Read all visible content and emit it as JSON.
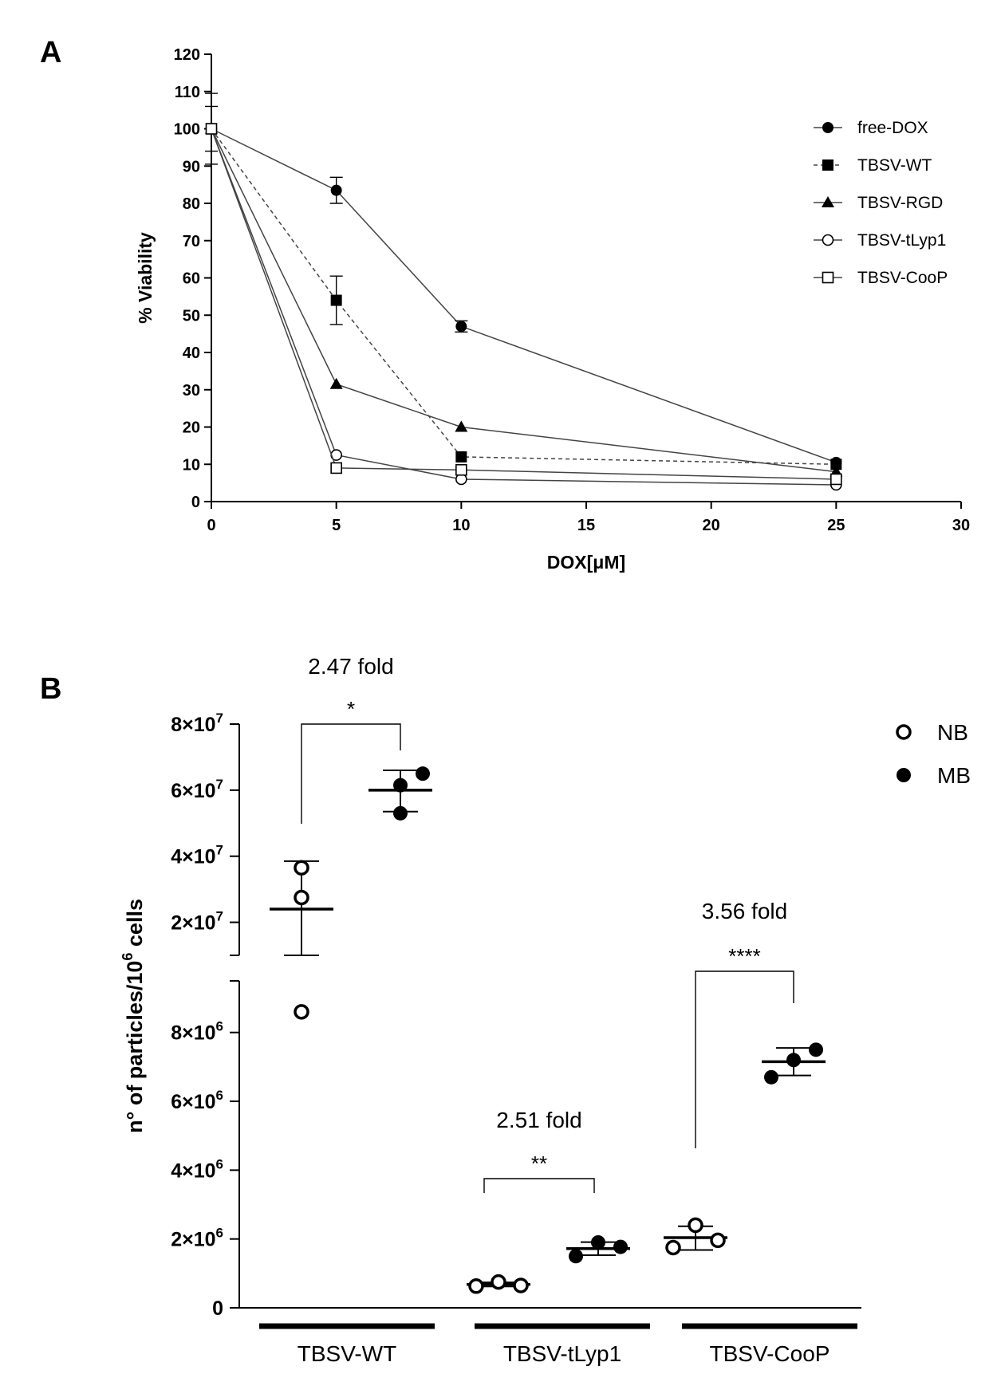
{
  "chart_data": [
    {
      "panel": "A",
      "type": "line",
      "xlabel": "DOX[μM]",
      "ylabel": "% Viability",
      "xlim": [
        0,
        30
      ],
      "ylim": [
        0,
        120
      ],
      "xticks": [
        0,
        5,
        10,
        15,
        20,
        25,
        30
      ],
      "yticks": [
        0,
        10,
        20,
        30,
        40,
        50,
        60,
        70,
        80,
        90,
        100,
        110,
        120
      ],
      "x": [
        0,
        5,
        10,
        25
      ],
      "series": [
        {
          "name": "free-DOX",
          "marker": "circle-filled",
          "dash": "solid",
          "values": [
            100,
            83.5,
            47,
            10.5
          ],
          "errors": [
            9.5,
            3.5,
            1.5,
            0
          ]
        },
        {
          "name": "TBSV-WT",
          "marker": "square-filled",
          "dash": "dashed",
          "values": [
            100,
            54,
            12,
            10
          ],
          "errors": [
            6,
            6.5,
            0,
            0
          ]
        },
        {
          "name": "TBSV-RGD",
          "marker": "triangle-filled",
          "dash": "solid",
          "values": [
            100,
            31.5,
            20,
            8
          ],
          "errors": [
            0,
            0,
            0,
            0
          ]
        },
        {
          "name": "TBSV-tLyp1",
          "marker": "circle-open",
          "dash": "solid",
          "values": [
            100,
            12.5,
            6,
            4.5
          ],
          "errors": [
            0,
            0,
            0,
            0
          ]
        },
        {
          "name": "TBSV-CooP",
          "marker": "square-open",
          "dash": "solid",
          "values": [
            100,
            9,
            8.5,
            6
          ],
          "errors": [
            0,
            0,
            0,
            0
          ]
        }
      ]
    },
    {
      "panel": "B",
      "type": "scatter",
      "ylabel_main": "n° of particles/10",
      "ylabel_sup": "6",
      "ylabel_tail": " cells",
      "categories": [
        "TBSV-WT",
        "TBSV-tLyp1",
        "TBSV-CooP"
      ],
      "legend": [
        {
          "name": "NB",
          "style": "open"
        },
        {
          "name": "MB",
          "style": "filled"
        }
      ],
      "upper_axis": {
        "range": [
          10000000,
          80000000
        ],
        "ticks": [
          {
            "value": 20000000,
            "mant": "2×10",
            "exp": "7"
          },
          {
            "value": 40000000,
            "mant": "4×10",
            "exp": "7"
          },
          {
            "value": 60000000,
            "mant": "6×10",
            "exp": "7"
          },
          {
            "value": 80000000,
            "mant": "8×10",
            "exp": "7"
          }
        ]
      },
      "lower_axis": {
        "range": [
          0,
          9500000
        ],
        "ticks": [
          {
            "value": 0,
            "mant": "0",
            "exp": ""
          },
          {
            "value": 2000000,
            "mant": "2×10",
            "exp": "6"
          },
          {
            "value": 4000000,
            "mant": "4×10",
            "exp": "6"
          },
          {
            "value": 6000000,
            "mant": "6×10",
            "exp": "6"
          },
          {
            "value": 8000000,
            "mant": "8×10",
            "exp": "6"
          }
        ]
      },
      "groups": [
        {
          "category": "TBSV-WT",
          "type": "NB",
          "points": [
            36500000,
            27500000,
            8600000
          ],
          "mean": 24000000,
          "sd_low": 10000000,
          "sd_high": 38500000
        },
        {
          "category": "TBSV-WT",
          "type": "MB",
          "points": [
            61500000,
            53000000,
            65000000
          ],
          "mean": 60000000,
          "sd_low": 53500000,
          "sd_high": 66000000
        },
        {
          "category": "TBSV-tLyp1",
          "type": "NB",
          "points": [
            630000,
            750000,
            650000
          ],
          "mean": 680000,
          "sd_low": 620000,
          "sd_high": 740000
        },
        {
          "category": "TBSV-tLyp1",
          "type": "MB",
          "points": [
            1500000,
            1900000,
            1770000
          ],
          "mean": 1720000,
          "sd_low": 1530000,
          "sd_high": 1910000
        },
        {
          "category": "TBSV-CooP",
          "type": "NB",
          "points": [
            1750000,
            2400000,
            1960000
          ],
          "mean": 2040000,
          "sd_low": 1680000,
          "sd_high": 2370000
        },
        {
          "category": "TBSV-CooP",
          "type": "MB",
          "points": [
            6700000,
            7200000,
            7500000
          ],
          "mean": 7150000,
          "sd_low": 6750000,
          "sd_high": 7550000
        }
      ],
      "annotations": [
        {
          "category": "TBSV-WT",
          "fold": "2.47 fold",
          "stars": "*"
        },
        {
          "category": "TBSV-tLyp1",
          "fold": "2.51 fold",
          "stars": "**"
        },
        {
          "category": "TBSV-CooP",
          "fold": "3.56 fold",
          "stars": "****"
        }
      ]
    }
  ],
  "panels": {
    "a_letter": "A",
    "b_letter": "B"
  }
}
